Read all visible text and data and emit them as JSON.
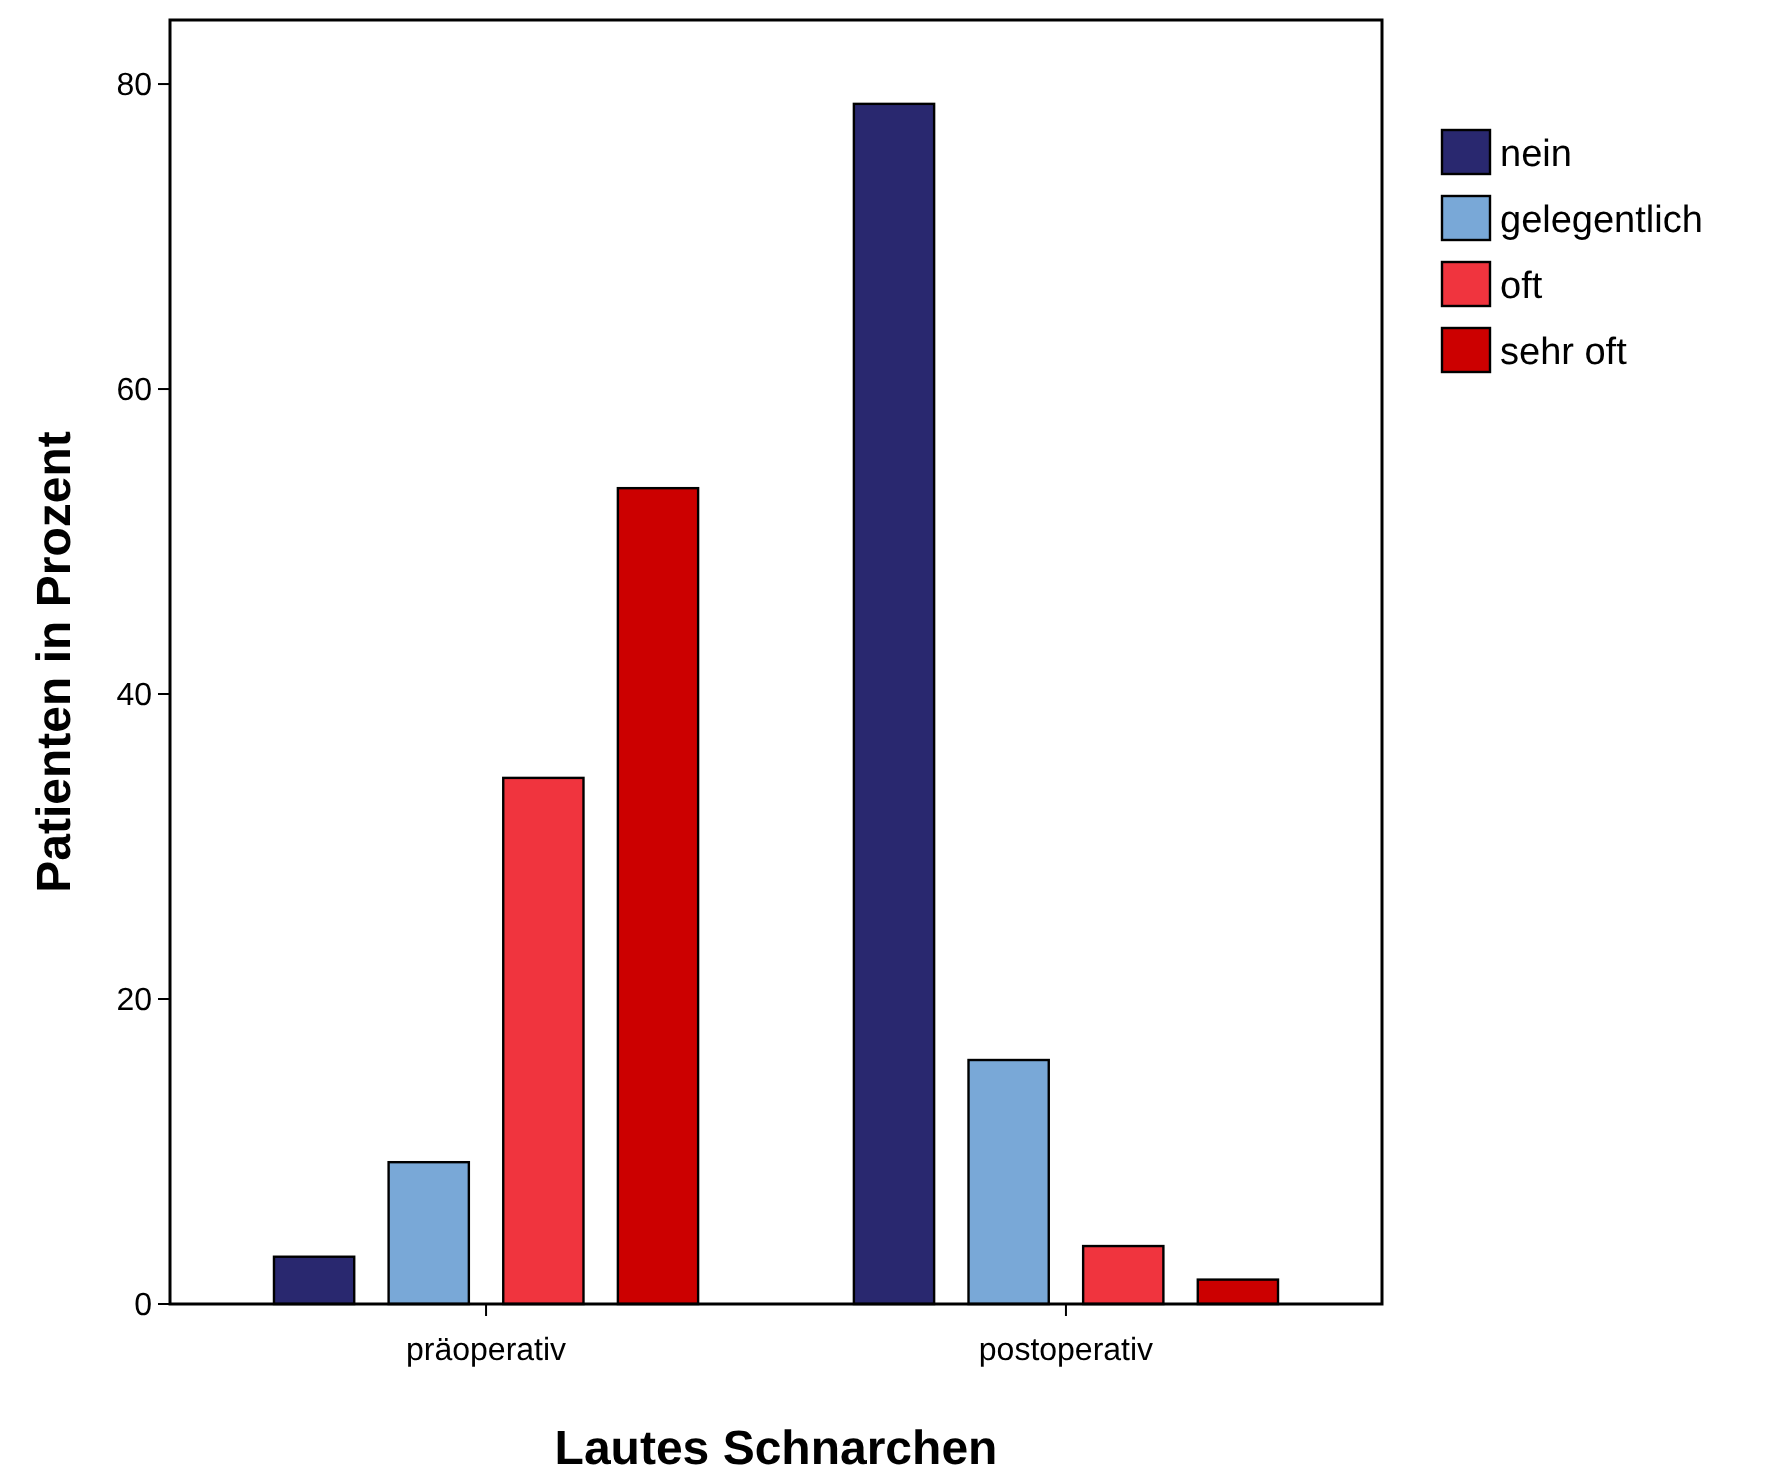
{
  "chart_data": {
    "type": "bar",
    "xlabel": "Lautes Schnarchen",
    "ylabel": "Patienten in Prozent",
    "categories": [
      "präoperativ",
      "postoperativ"
    ],
    "series": [
      {
        "name": "nein",
        "color": "#29286f",
        "values": [
          3.1,
          78.7
        ]
      },
      {
        "name": "gelegentlich",
        "color": "#79a8d7",
        "values": [
          9.3,
          16.0
        ]
      },
      {
        "name": "oft",
        "color": "#f0343e",
        "values": [
          34.5,
          3.8
        ]
      },
      {
        "name": "sehr oft",
        "color": "#cc0000",
        "values": [
          53.5,
          1.6
        ]
      }
    ],
    "ylim": [
      0,
      84.2
    ],
    "yticks": [
      0,
      20,
      40,
      60,
      80
    ],
    "grid": false,
    "legend": "right"
  }
}
